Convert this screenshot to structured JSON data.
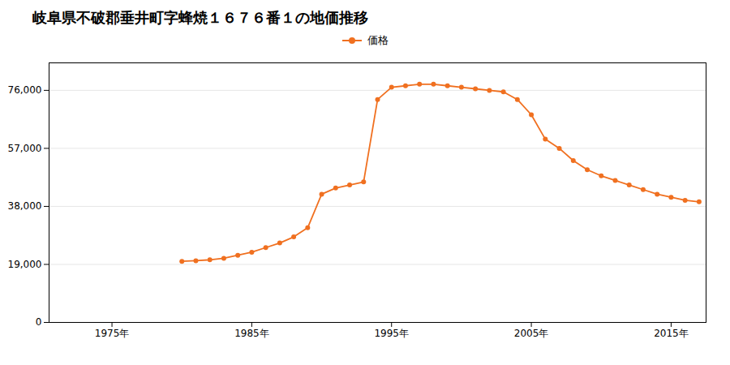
{
  "chart_data": {
    "type": "line",
    "title": "岐阜県不破郡垂井町字蜂焼１６７６番１の地価推移",
    "x": [
      1980,
      1981,
      1982,
      1983,
      1984,
      1985,
      1986,
      1987,
      1988,
      1989,
      1990,
      1991,
      1992,
      1993,
      1994,
      1995,
      1996,
      1997,
      1998,
      1999,
      2000,
      2001,
      2002,
      2003,
      2004,
      2005,
      2006,
      2007,
      2008,
      2009,
      2010,
      2011,
      2012,
      2013,
      2014,
      2015,
      2016,
      2017
    ],
    "series": [
      {
        "name": "価格",
        "color": "#f07020",
        "marker": "circle",
        "values": [
          20000,
          20200,
          20500,
          21000,
          22000,
          23000,
          24500,
          26000,
          28000,
          31000,
          42000,
          44000,
          45000,
          46000,
          73000,
          77000,
          77500,
          78000,
          78000,
          77500,
          77000,
          76500,
          76000,
          75500,
          73000,
          68000,
          60000,
          57000,
          53000,
          50000,
          48000,
          46500,
          45000,
          43500,
          42000,
          41000,
          40000,
          39500
        ]
      }
    ],
    "xlim": [
      1970.5,
      2017.5
    ],
    "xticks": [
      {
        "value": 1975,
        "label": "1975年"
      },
      {
        "value": 1985,
        "label": "1985年"
      },
      {
        "value": 1995,
        "label": "1995年"
      },
      {
        "value": 2005,
        "label": "2005年"
      },
      {
        "value": 2015,
        "label": "2015年"
      }
    ],
    "ylim": [
      0,
      85000
    ],
    "yticks": [
      0,
      {
        "value": 19000,
        "label": "19,000"
      },
      {
        "value": 38000,
        "label": "38,000"
      },
      {
        "value": 57000,
        "label": "57,000"
      },
      {
        "value": 76000,
        "label": "76,000"
      }
    ],
    "grid": true,
    "legend": "top"
  }
}
